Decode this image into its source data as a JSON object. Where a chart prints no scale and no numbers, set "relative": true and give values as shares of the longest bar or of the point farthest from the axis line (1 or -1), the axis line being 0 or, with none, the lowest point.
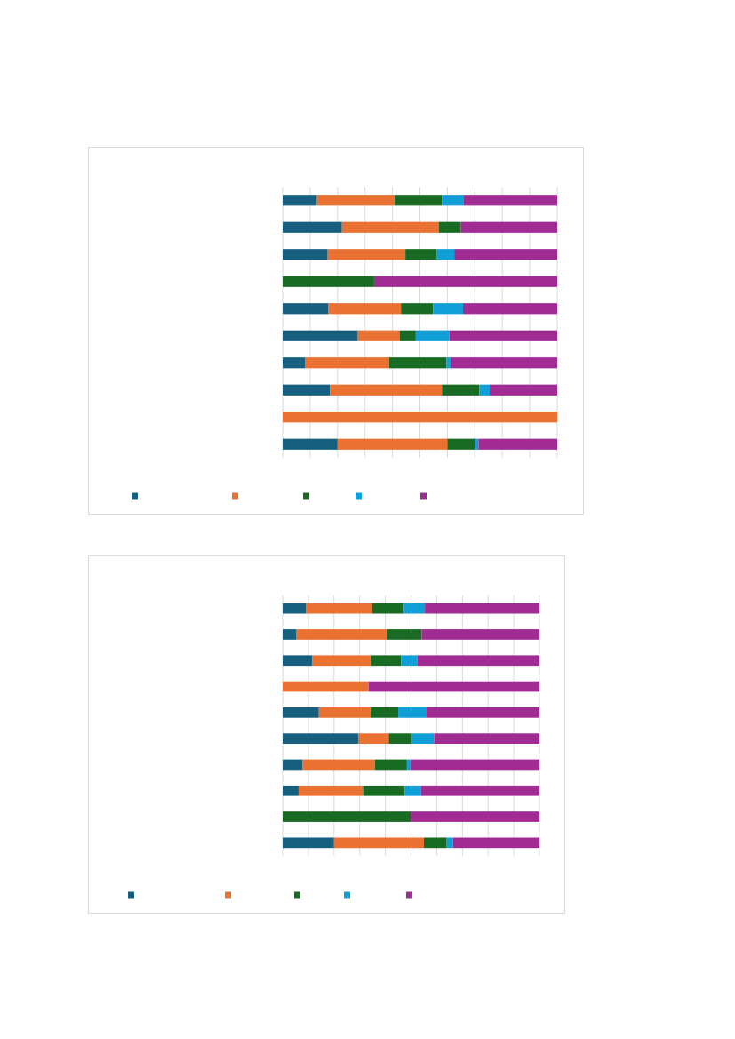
{
  "chart_data": [
    {
      "type": "bar",
      "orientation": "horizontal",
      "stacked": true,
      "relative": true,
      "grid": "x",
      "categories": [
        null,
        null,
        null,
        null,
        null,
        null,
        null,
        null,
        null,
        null
      ],
      "series": [
        {
          "color": "#175f7f",
          "values": [
            0.125,
            0.216,
            0.164,
            0,
            0.167,
            0.274,
            0.081,
            0.173,
            0,
            0.2
          ]
        },
        {
          "color": "#e97132",
          "values": [
            0.284,
            0.352,
            0.283,
            0,
            0.264,
            0.152,
            0.307,
            0.407,
            1,
            0.4
          ]
        },
        {
          "color": "#196b24",
          "values": [
            0.171,
            0.081,
            0.115,
            0.333,
            0.117,
            0.059,
            0.209,
            0.136,
            0,
            0.1
          ]
        },
        {
          "color": "#0f9ed5",
          "values": [
            0.078,
            0,
            0.063,
            0,
            0.109,
            0.122,
            0.016,
            0.038,
            0,
            0.013
          ]
        },
        {
          "color": "#a02b93",
          "values": [
            0.342,
            0.351,
            0.375,
            0.667,
            0.343,
            0.393,
            0.387,
            0.246,
            0,
            0.287
          ]
        }
      ]
    },
    {
      "type": "bar",
      "orientation": "horizontal",
      "stacked": true,
      "relative": true,
      "grid": "x",
      "categories": [
        null,
        null,
        null,
        null,
        null,
        null,
        null,
        null,
        null,
        null
      ],
      "series": [
        {
          "color": "#175f7f",
          "values": [
            0.092,
            0.054,
            0.116,
            0,
            0.141,
            0.294,
            0.078,
            0.062,
            0,
            0.2
          ]
        },
        {
          "color": "#e97132",
          "values": [
            0.257,
            0.352,
            0.228,
            0.334,
            0.203,
            0.119,
            0.281,
            0.251,
            0,
            0.35
          ]
        },
        {
          "color": "#196b24",
          "values": [
            0.123,
            0.135,
            0.118,
            0,
            0.106,
            0.089,
            0.125,
            0.163,
            0.5,
            0.089
          ]
        },
        {
          "color": "#0f9ed5",
          "values": [
            0.082,
            0,
            0.062,
            0,
            0.108,
            0.088,
            0.016,
            0.062,
            0,
            0.024
          ]
        },
        {
          "color": "#a02b93",
          "values": [
            0.446,
            0.459,
            0.476,
            0.666,
            0.442,
            0.41,
            0.5,
            0.462,
            0.5,
            0.337
          ]
        }
      ]
    }
  ]
}
